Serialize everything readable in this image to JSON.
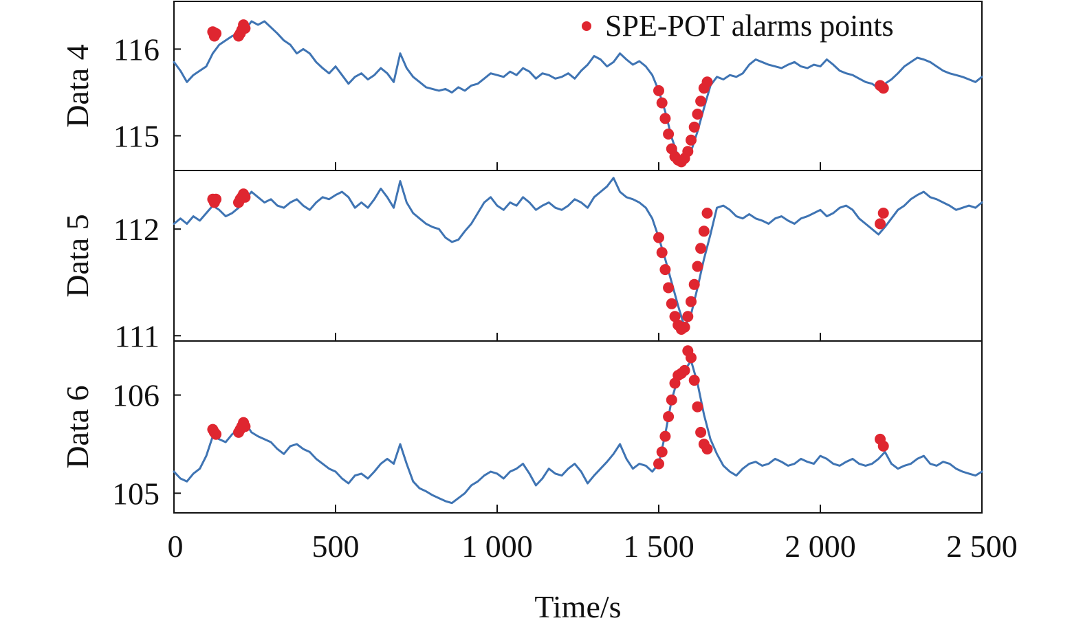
{
  "chart_data": {
    "type": "line",
    "title": "",
    "xlabel": "Time/s",
    "xlim": [
      0,
      2500
    ],
    "x_ticks": [
      {
        "value": 0,
        "label": "0"
      },
      {
        "value": 500,
        "label": "500"
      },
      {
        "value": 1000,
        "label": "1 000"
      },
      {
        "value": 1500,
        "label": "1 500"
      },
      {
        "value": 2000,
        "label": "2 000"
      },
      {
        "value": 2500,
        "label": "2 500"
      }
    ],
    "legend": {
      "label": "SPE-POT alarms points",
      "placement": "top-right"
    },
    "colors": {
      "line": "#3f74b3",
      "alarm": "#df2630",
      "axis": "#111111"
    },
    "panels": [
      {
        "ylabel": "Data 4",
        "ylim": [
          114.6,
          116.55
        ],
        "y_ticks": [
          {
            "value": 115,
            "label": "115"
          },
          {
            "value": 116,
            "label": "116"
          }
        ],
        "series": {
          "x": [
            0,
            20,
            40,
            60,
            80,
            100,
            120,
            140,
            160,
            180,
            200,
            220,
            240,
            260,
            280,
            300,
            320,
            340,
            360,
            380,
            400,
            420,
            440,
            460,
            480,
            500,
            520,
            540,
            560,
            580,
            600,
            620,
            640,
            660,
            680,
            700,
            720,
            740,
            760,
            780,
            800,
            820,
            840,
            860,
            880,
            900,
            920,
            940,
            960,
            980,
            1000,
            1020,
            1040,
            1060,
            1080,
            1100,
            1120,
            1140,
            1160,
            1180,
            1200,
            1220,
            1240,
            1260,
            1280,
            1300,
            1320,
            1340,
            1360,
            1380,
            1400,
            1420,
            1440,
            1460,
            1480,
            1500,
            1520,
            1540,
            1560,
            1580,
            1600,
            1620,
            1640,
            1660,
            1680,
            1700,
            1720,
            1740,
            1760,
            1780,
            1800,
            1820,
            1840,
            1860,
            1880,
            1900,
            1920,
            1940,
            1960,
            1980,
            2000,
            2020,
            2040,
            2060,
            2080,
            2100,
            2120,
            2140,
            2160,
            2180,
            2200,
            2220,
            2240,
            2260,
            2280,
            2300,
            2320,
            2340,
            2360,
            2380,
            2400,
            2420,
            2440,
            2460,
            2480,
            2500
          ],
          "y": [
            115.85,
            115.75,
            115.62,
            115.7,
            115.75,
            115.8,
            115.95,
            116.05,
            116.1,
            116.15,
            116.18,
            116.22,
            116.32,
            116.28,
            116.32,
            116.25,
            116.18,
            116.1,
            116.05,
            115.95,
            116.0,
            115.95,
            115.85,
            115.78,
            115.72,
            115.8,
            115.7,
            115.6,
            115.68,
            115.72,
            115.65,
            115.7,
            115.78,
            115.72,
            115.62,
            115.95,
            115.78,
            115.68,
            115.62,
            115.56,
            115.54,
            115.52,
            115.54,
            115.5,
            115.56,
            115.52,
            115.58,
            115.6,
            115.66,
            115.72,
            115.7,
            115.68,
            115.74,
            115.7,
            115.78,
            115.74,
            115.66,
            115.72,
            115.7,
            115.66,
            115.68,
            115.72,
            115.66,
            115.75,
            115.82,
            115.92,
            115.88,
            115.8,
            115.85,
            115.95,
            115.88,
            115.82,
            115.86,
            115.8,
            115.7,
            115.52,
            115.28,
            114.98,
            114.76,
            114.7,
            114.82,
            115.05,
            115.32,
            115.58,
            115.68,
            115.65,
            115.7,
            115.68,
            115.72,
            115.82,
            115.88,
            115.85,
            115.82,
            115.8,
            115.78,
            115.82,
            115.85,
            115.8,
            115.78,
            115.82,
            115.8,
            115.88,
            115.82,
            115.75,
            115.72,
            115.7,
            115.66,
            115.62,
            115.6,
            115.55,
            115.6,
            115.65,
            115.72,
            115.8,
            115.85,
            115.9,
            115.88,
            115.85,
            115.8,
            115.75,
            115.72,
            115.7,
            115.68,
            115.65,
            115.62,
            115.68
          ]
        },
        "alarms": {
          "x": [
            120,
            125,
            130,
            200,
            205,
            210,
            215,
            220,
            1500,
            1510,
            1520,
            1530,
            1540,
            1550,
            1560,
            1570,
            1580,
            1590,
            1600,
            1610,
            1620,
            1630,
            1640,
            1650,
            2185,
            2195
          ],
          "y": [
            116.2,
            116.15,
            116.18,
            116.15,
            116.18,
            116.22,
            116.28,
            116.24,
            115.52,
            115.38,
            115.2,
            115.02,
            114.85,
            114.76,
            114.72,
            114.7,
            114.74,
            114.82,
            114.95,
            115.1,
            115.25,
            115.4,
            115.55,
            115.62,
            115.58,
            115.55
          ]
        }
      },
      {
        "ylabel": "Data 5",
        "ylim": [
          110.95,
          112.55
        ],
        "y_ticks": [
          {
            "value": 111,
            "label": "111"
          },
          {
            "value": 112,
            "label": "112"
          }
        ],
        "series": {
          "x": [
            0,
            20,
            40,
            60,
            80,
            100,
            120,
            140,
            160,
            180,
            200,
            220,
            240,
            260,
            280,
            300,
            320,
            340,
            360,
            380,
            400,
            420,
            440,
            460,
            480,
            500,
            520,
            540,
            560,
            580,
            600,
            620,
            640,
            660,
            680,
            700,
            720,
            740,
            760,
            780,
            800,
            820,
            840,
            860,
            880,
            900,
            920,
            940,
            960,
            980,
            1000,
            1020,
            1040,
            1060,
            1080,
            1100,
            1120,
            1140,
            1160,
            1180,
            1200,
            1220,
            1240,
            1260,
            1280,
            1300,
            1320,
            1340,
            1360,
            1380,
            1400,
            1420,
            1440,
            1460,
            1480,
            1500,
            1520,
            1540,
            1560,
            1580,
            1600,
            1620,
            1640,
            1660,
            1680,
            1700,
            1720,
            1740,
            1760,
            1780,
            1800,
            1820,
            1840,
            1860,
            1880,
            1900,
            1920,
            1940,
            1960,
            1980,
            2000,
            2020,
            2040,
            2060,
            2080,
            2100,
            2120,
            2140,
            2160,
            2180,
            2200,
            2220,
            2240,
            2260,
            2280,
            2300,
            2320,
            2340,
            2360,
            2380,
            2400,
            2420,
            2440,
            2460,
            2480,
            2500
          ],
          "y": [
            112.05,
            112.1,
            112.05,
            112.12,
            112.08,
            112.15,
            112.22,
            112.18,
            112.12,
            112.15,
            112.2,
            112.28,
            112.35,
            112.3,
            112.25,
            112.28,
            112.22,
            112.2,
            112.25,
            112.28,
            112.22,
            112.18,
            112.25,
            112.3,
            112.28,
            112.32,
            112.35,
            112.3,
            112.2,
            112.25,
            112.2,
            112.28,
            112.38,
            112.3,
            112.2,
            112.45,
            112.25,
            112.15,
            112.1,
            112.05,
            112.02,
            112.0,
            111.92,
            111.88,
            111.9,
            111.98,
            112.05,
            112.15,
            112.25,
            112.3,
            112.22,
            112.18,
            112.25,
            112.22,
            112.3,
            112.25,
            112.18,
            112.22,
            112.25,
            112.2,
            112.18,
            112.22,
            112.28,
            112.25,
            112.2,
            112.3,
            112.35,
            112.4,
            112.48,
            112.35,
            112.3,
            112.28,
            112.25,
            112.2,
            112.1,
            111.92,
            111.72,
            111.5,
            111.28,
            111.08,
            111.2,
            111.45,
            111.72,
            111.95,
            112.2,
            112.22,
            112.18,
            112.12,
            112.1,
            112.14,
            112.1,
            112.08,
            112.05,
            112.1,
            112.12,
            112.08,
            112.05,
            112.1,
            112.12,
            112.15,
            112.18,
            112.12,
            112.15,
            112.2,
            112.22,
            112.18,
            112.1,
            112.05,
            112.0,
            111.95,
            112.02,
            112.1,
            112.18,
            112.22,
            112.28,
            112.32,
            112.35,
            112.3,
            112.28,
            112.25,
            112.22,
            112.18,
            112.2,
            112.22,
            112.2,
            112.25
          ]
        },
        "alarms": {
          "x": [
            120,
            125,
            130,
            200,
            205,
            210,
            215,
            220,
            1500,
            1510,
            1520,
            1530,
            1540,
            1550,
            1560,
            1570,
            1580,
            1590,
            1600,
            1610,
            1620,
            1630,
            1640,
            1650,
            2185,
            2195
          ],
          "y": [
            112.28,
            112.25,
            112.28,
            112.25,
            112.28,
            112.3,
            112.33,
            112.3,
            111.92,
            111.78,
            111.62,
            111.45,
            111.3,
            111.18,
            111.1,
            111.06,
            111.08,
            111.18,
            111.32,
            111.48,
            111.65,
            111.82,
            111.98,
            112.15,
            112.05,
            112.15
          ]
        }
      },
      {
        "ylabel": "Data 6",
        "ylim": [
          104.8,
          106.55
        ],
        "y_ticks": [
          {
            "value": 105,
            "label": "105"
          },
          {
            "value": 106,
            "label": "106"
          }
        ],
        "series": {
          "x": [
            0,
            20,
            40,
            60,
            80,
            100,
            120,
            140,
            160,
            180,
            200,
            220,
            240,
            260,
            280,
            300,
            320,
            340,
            360,
            380,
            400,
            420,
            440,
            460,
            480,
            500,
            520,
            540,
            560,
            580,
            600,
            620,
            640,
            660,
            680,
            700,
            720,
            740,
            760,
            780,
            800,
            820,
            840,
            860,
            880,
            900,
            920,
            940,
            960,
            980,
            1000,
            1020,
            1040,
            1060,
            1080,
            1100,
            1120,
            1140,
            1160,
            1180,
            1200,
            1220,
            1240,
            1260,
            1280,
            1300,
            1320,
            1340,
            1360,
            1380,
            1400,
            1420,
            1440,
            1460,
            1480,
            1500,
            1520,
            1540,
            1560,
            1580,
            1600,
            1620,
            1640,
            1660,
            1680,
            1700,
            1720,
            1740,
            1760,
            1780,
            1800,
            1820,
            1840,
            1860,
            1880,
            1900,
            1920,
            1940,
            1960,
            1980,
            2000,
            2020,
            2040,
            2060,
            2080,
            2100,
            2120,
            2140,
            2160,
            2180,
            2200,
            2220,
            2240,
            2260,
            2280,
            2300,
            2320,
            2340,
            2360,
            2380,
            2400,
            2420,
            2440,
            2460,
            2480,
            2500
          ],
          "y": [
            105.22,
            105.15,
            105.12,
            105.2,
            105.25,
            105.38,
            105.58,
            105.55,
            105.52,
            105.6,
            105.65,
            105.72,
            105.62,
            105.58,
            105.55,
            105.52,
            105.45,
            105.4,
            105.48,
            105.5,
            105.45,
            105.42,
            105.35,
            105.3,
            105.25,
            105.22,
            105.15,
            105.1,
            105.18,
            105.2,
            105.15,
            105.22,
            105.3,
            105.35,
            105.3,
            105.5,
            105.3,
            105.12,
            105.05,
            105.02,
            104.98,
            104.95,
            104.92,
            104.9,
            104.95,
            105.0,
            105.08,
            105.12,
            105.18,
            105.22,
            105.2,
            105.15,
            105.22,
            105.25,
            105.3,
            105.2,
            105.08,
            105.15,
            105.25,
            105.2,
            105.18,
            105.25,
            105.3,
            105.22,
            105.1,
            105.18,
            105.25,
            105.32,
            105.4,
            105.5,
            105.35,
            105.25,
            105.3,
            105.28,
            105.22,
            105.3,
            105.6,
            105.95,
            106.18,
            106.25,
            106.35,
            106.12,
            105.8,
            105.55,
            105.4,
            105.28,
            105.22,
            105.18,
            105.25,
            105.3,
            105.32,
            105.28,
            105.3,
            105.35,
            105.32,
            105.28,
            105.3,
            105.35,
            105.32,
            105.3,
            105.38,
            105.35,
            105.3,
            105.28,
            105.32,
            105.35,
            105.3,
            105.28,
            105.3,
            105.35,
            105.42,
            105.3,
            105.25,
            105.28,
            105.3,
            105.35,
            105.38,
            105.3,
            105.28,
            105.32,
            105.3,
            105.25,
            105.22,
            105.2,
            105.18,
            105.22
          ]
        },
        "alarms": {
          "x": [
            120,
            125,
            130,
            200,
            205,
            210,
            215,
            220,
            1500,
            1510,
            1520,
            1530,
            1540,
            1550,
            1560,
            1570,
            1580,
            1590,
            1600,
            1610,
            1620,
            1630,
            1640,
            1650,
            2185,
            2195
          ],
          "y": [
            105.65,
            105.62,
            105.6,
            105.62,
            105.65,
            105.68,
            105.72,
            105.68,
            105.3,
            105.42,
            105.58,
            105.78,
            105.95,
            106.12,
            106.2,
            106.22,
            106.25,
            106.45,
            106.38,
            106.15,
            105.88,
            105.62,
            105.5,
            105.45,
            105.55,
            105.48
          ]
        }
      }
    ]
  }
}
